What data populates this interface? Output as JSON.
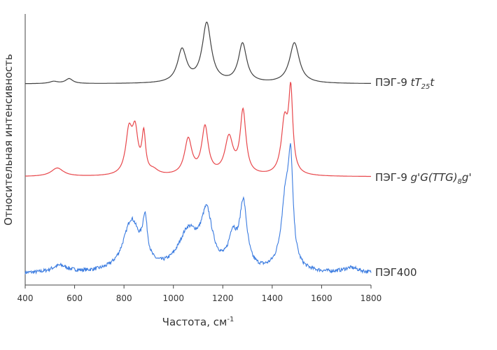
{
  "chart_data": {
    "type": "line",
    "xlabel": "Частота, см",
    "xlabel_sup": "-1",
    "ylabel": "Относительная интенсивность",
    "xlim": [
      400,
      1800
    ],
    "xticks": [
      400,
      600,
      800,
      1000,
      1200,
      1400,
      1600,
      1800
    ],
    "y_ticks_shown": false,
    "grid": false,
    "legend": "labels at right end of each trace",
    "series": [
      {
        "name": "ПЭГ-9 tT25t",
        "color": "#404040",
        "peaks": [
          [
            515,
            0.03,
            20
          ],
          [
            578,
            0.07,
            18
          ],
          [
            1035,
            0.47,
            22
          ],
          [
            1135,
            0.85,
            22
          ],
          [
            1280,
            0.56,
            20
          ],
          [
            1490,
            0.58,
            24
          ]
        ]
      },
      {
        "name": "ПЭГ-9 g'G(TTG)8g'",
        "color": "#e8474b",
        "peaks": [
          [
            530,
            0.08,
            30
          ],
          [
            820,
            0.4,
            16
          ],
          [
            845,
            0.38,
            14
          ],
          [
            880,
            0.37,
            9
          ],
          [
            920,
            0.04,
            22
          ],
          [
            1060,
            0.34,
            18
          ],
          [
            1128,
            0.45,
            16
          ],
          [
            1225,
            0.35,
            20
          ],
          [
            1282,
            0.6,
            14
          ],
          [
            1450,
            0.5,
            16
          ],
          [
            1475,
            0.75,
            10
          ]
        ]
      },
      {
        "name": "ПЭГ400",
        "color": "#3a7be0",
        "peaks": [
          [
            540,
            0.07,
            40
          ],
          [
            830,
            0.5,
            40
          ],
          [
            885,
            0.4,
            12
          ],
          [
            1060,
            0.38,
            50
          ],
          [
            1135,
            0.52,
            28
          ],
          [
            1240,
            0.3,
            20
          ],
          [
            1283,
            0.64,
            18
          ],
          [
            1455,
            0.72,
            22
          ],
          [
            1475,
            0.85,
            11
          ],
          [
            1720,
            0.05,
            40
          ]
        ]
      }
    ]
  },
  "labels": {
    "series1_prefix": "ПЭГ-9 ",
    "series1_a": "tT",
    "series1_sub": "25",
    "series1_b": "t",
    "series2_prefix": "ПЭГ-9 ",
    "series2_a": "g'G(TTG)",
    "series2_sub": "8",
    "series2_b": "g'",
    "series3": "ПЭГ400"
  }
}
